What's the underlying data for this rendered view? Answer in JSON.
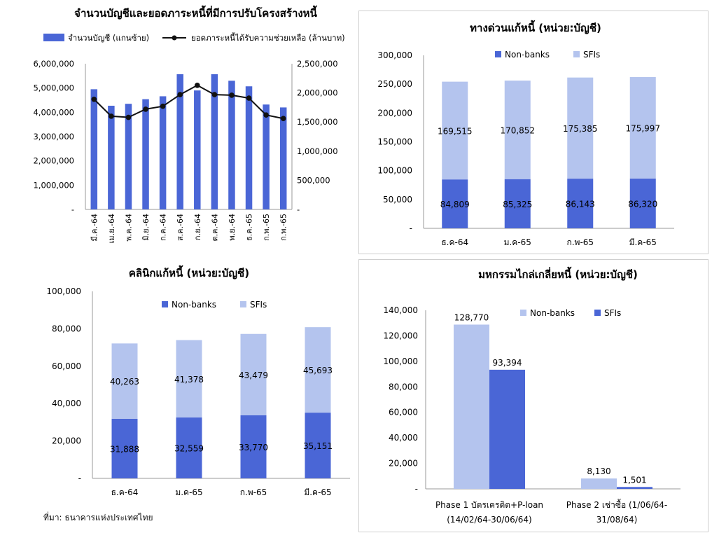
{
  "colors": {
    "primary": "#4a66d6",
    "secondary": "#b4c4ee",
    "line": "#111111",
    "axis": "#555555"
  },
  "source": "ที่มา: ธนาคารแห่งประเทศไทย",
  "chart_data": [
    {
      "type": "bar",
      "title": "จำนวนบัญชีและยอดภาระหนี้ที่มีการปรับโครงสร้างหนี้",
      "legend": [
        "จำนวนบัญชี (แกนซ้าย)",
        "ยอดภาระหนี้ได้รับความช่วยเหลือ (ล้านบาท)"
      ],
      "categories": [
        "มี.ค.-64",
        "เม.ย.-64",
        "พ.ค.-64",
        "มิ.ย.-64",
        "ก.ค.-64",
        "ส.ค.-64",
        "ก.ย.-64",
        "ต.ค.-64",
        "พ.ย.-64",
        "ธ.ค.-65",
        "ก.พ.-65",
        "ก.พ.-65"
      ],
      "series": [
        {
          "name": "จำนวนบัญชี (แกนซ้าย)",
          "type": "bar",
          "axis": "left",
          "values": [
            4950000,
            4270000,
            4350000,
            4540000,
            4660000,
            5570000,
            4900000,
            5570000,
            5300000,
            5070000,
            4320000,
            4200000
          ]
        },
        {
          "name": "ยอดภาระหนี้ได้รับความช่วยเหลือ (ล้านบาท)",
          "type": "line",
          "axis": "right",
          "values": [
            1890000,
            1600000,
            1580000,
            1720000,
            1770000,
            1970000,
            2130000,
            1970000,
            1960000,
            1910000,
            1620000,
            1560000
          ]
        }
      ],
      "ylim": [
        0,
        6000000
      ],
      "yticks": [
        "-",
        "1,000,000",
        "2,000,000",
        "3,000,000",
        "4,000,000",
        "5,000,000",
        "6,000,000"
      ],
      "y2lim": [
        0,
        2500000
      ],
      "y2ticks": [
        "-",
        "500,000",
        "1,000,000",
        "1,500,000",
        "2,000,000",
        "2,500,000"
      ],
      "legend_position": "top"
    },
    {
      "type": "bar",
      "stacked": true,
      "title": "ทางด่วนแก้หนี้ (หน่วย:บัญชี)",
      "categories": [
        "ธ.ค-64",
        "ม.ค-65",
        "ก.พ-65",
        "มี.ค-65"
      ],
      "series": [
        {
          "name": "Non-banks",
          "values": [
            84809,
            85325,
            86143,
            86320
          ],
          "labels": [
            "84,809",
            "85,325",
            "86,143",
            "86,320"
          ]
        },
        {
          "name": "SFIs",
          "values": [
            169515,
            170852,
            175385,
            175997
          ],
          "labels": [
            "169,515",
            "170,852",
            "175,385",
            "175,997"
          ]
        }
      ],
      "ylim": [
        0,
        300000
      ],
      "yticks": [
        "-",
        "50,000",
        "100,000",
        "150,000",
        "200,000",
        "250,000",
        "300,000"
      ],
      "legend_position": "top"
    },
    {
      "type": "bar",
      "stacked": true,
      "title": "คลินิกแก้หนี้ (หน่วย:บัญชี)",
      "categories": [
        "ธ.ค-64",
        "ม.ค-65",
        "ก.พ-65",
        "มี.ค-65"
      ],
      "series": [
        {
          "name": "Non-banks",
          "values": [
            31888,
            32559,
            33770,
            35151
          ],
          "labels": [
            "31,888",
            "32,559",
            "33,770",
            "35,151"
          ]
        },
        {
          "name": "SFIs",
          "values": [
            40263,
            41378,
            43479,
            45693
          ],
          "labels": [
            "40,263",
            "41,378",
            "43,479",
            "45,693"
          ]
        }
      ],
      "ylim": [
        0,
        100000
      ],
      "yticks": [
        "-",
        "20,000",
        "40,000",
        "60,000",
        "80,000",
        "100,000"
      ],
      "legend_position": "top"
    },
    {
      "type": "bar",
      "title": "มหกรรมไกล่เกลี่ยหนี้ (หน่วย:บัญชี)",
      "categories": [
        [
          "Phase 1 บัตรเครดิต+P-loan",
          "(14/02/64-30/06/64)"
        ],
        [
          "Phase 2 เช่าซื้อ (1/06/64-",
          "31/08/64)"
        ]
      ],
      "series": [
        {
          "name": "Non-banks",
          "values": [
            128770,
            8130
          ],
          "labels": [
            "128,770",
            "8,130"
          ]
        },
        {
          "name": "SFIs",
          "values": [
            93394,
            1501
          ],
          "labels": [
            "93,394",
            "1,501"
          ]
        }
      ],
      "ylim": [
        0,
        140000
      ],
      "yticks": [
        "-",
        "20,000",
        "40,000",
        "60,000",
        "80,000",
        "100,000",
        "120,000",
        "140,000"
      ],
      "legend_position": "top"
    }
  ]
}
